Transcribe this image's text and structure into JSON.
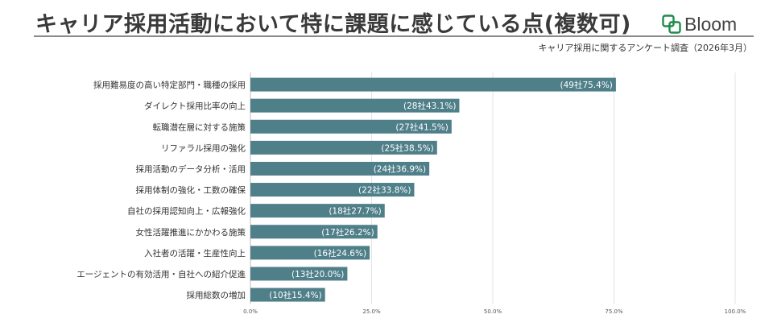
{
  "header": {
    "title": "キャリア採用活動において特に課題に感じている点(複数可)",
    "logo_text": "Bloom",
    "source_note": "キャリア採用に関するアンケート調査（2026年3月）"
  },
  "colors": {
    "bar": "#4f7f89",
    "logo_green": "#1f8b4c"
  },
  "chart_data": {
    "type": "bar",
    "orientation": "horizontal",
    "title": "キャリア採用活動において特に課題に感じている点(複数可)",
    "categories": [
      "採用難易度の高い特定部門・職種の採用",
      "ダイレクト採用比率の向上",
      "転職潜在層に対する施策",
      "リファラル採用の強化",
      "採用活動のデータ分析・活用",
      "採用体制の強化・工数の確保",
      "自社の採用認知向上・広報強化",
      "女性活躍推進にかかわる施策",
      "入社者の活躍・生産性向上",
      "エージェントの有効活用・自社への紹介促進",
      "採用総数の増加"
    ],
    "values": [
      75.4,
      43.1,
      41.5,
      38.5,
      36.9,
      33.8,
      27.7,
      26.2,
      24.6,
      20.0,
      15.4
    ],
    "counts": [
      49,
      28,
      27,
      25,
      24,
      22,
      18,
      17,
      16,
      13,
      10
    ],
    "data_labels": [
      "(49社75.4%)",
      "(28社43.1%)",
      "(27社41.5%)",
      "(25社38.5%)",
      "(24社36.9%)",
      "(22社33.8%)",
      "(18社27.7%)",
      "(17社26.2%)",
      "(16社24.6%)",
      "(13社20.0%)",
      "(10社15.4%)"
    ],
    "xlim": [
      0,
      100
    ],
    "xticks": [
      0,
      25,
      50,
      75,
      100
    ],
    "xtick_labels": [
      "0.0%",
      "25.0%",
      "50.0%",
      "75.0%",
      "100.0%"
    ],
    "grid": true,
    "legend": "none"
  }
}
